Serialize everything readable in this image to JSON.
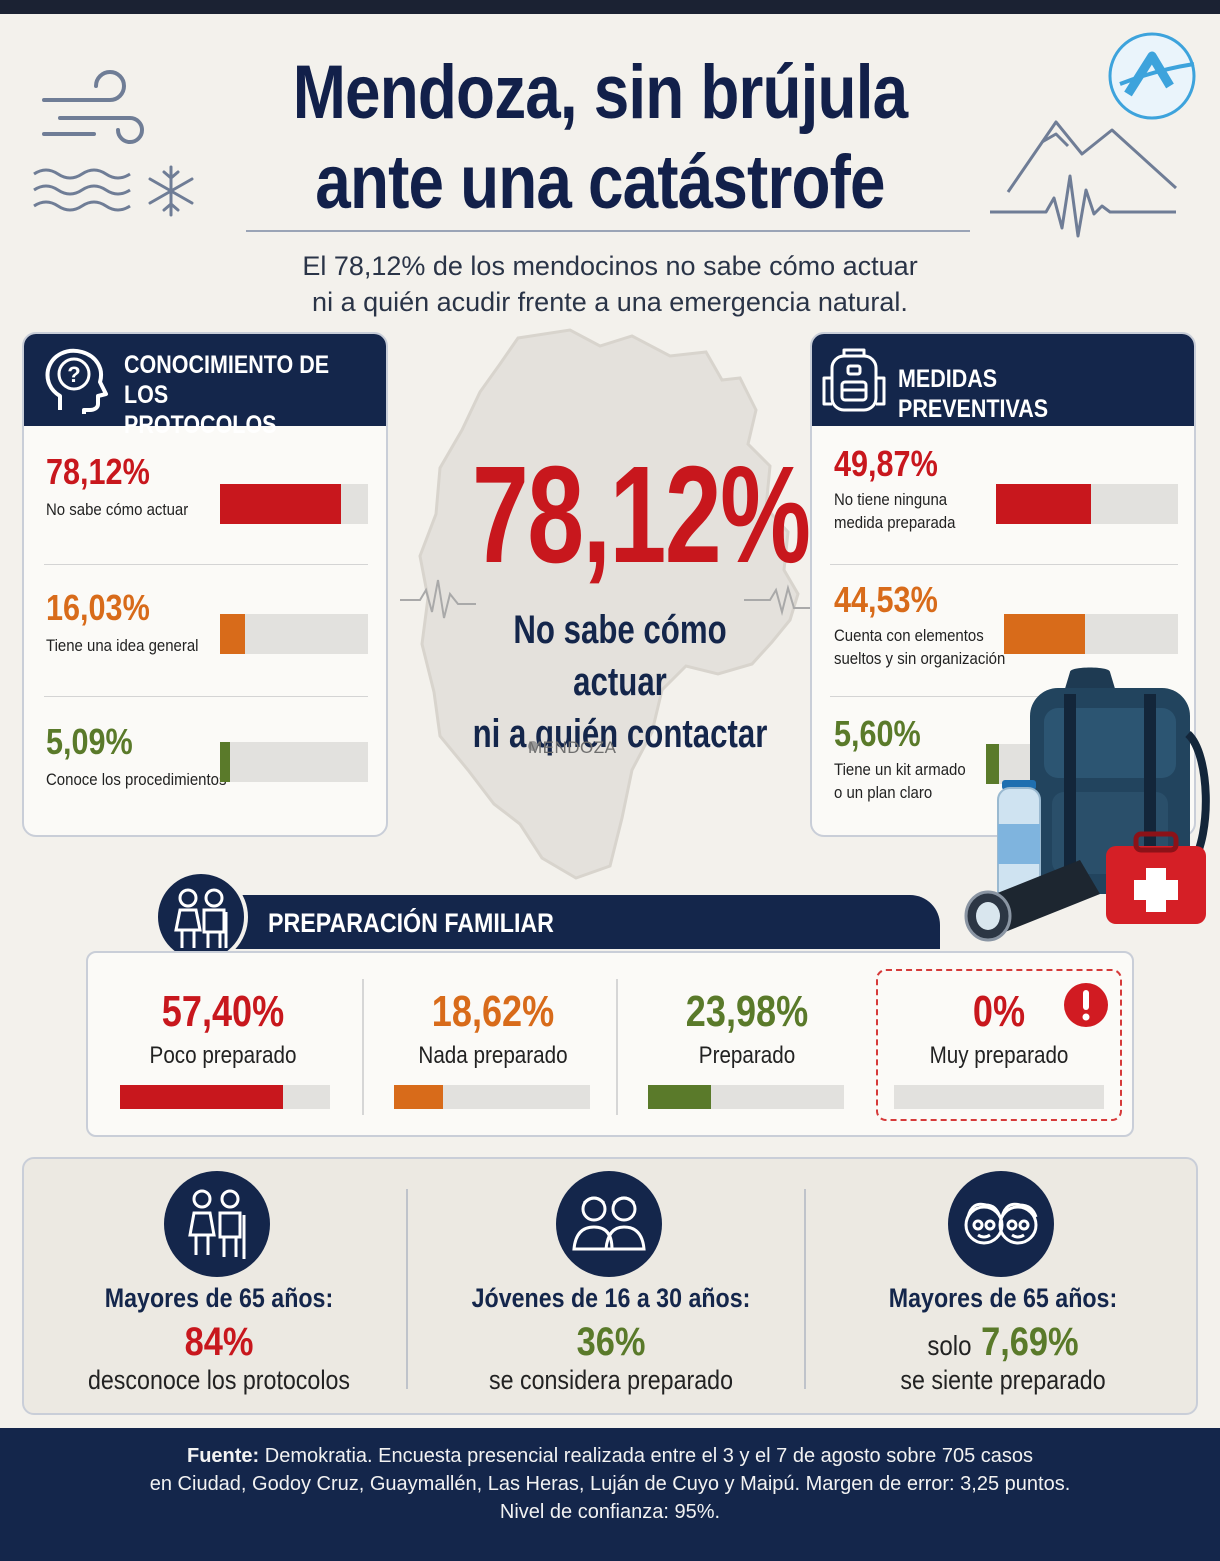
{
  "header": {
    "title_line1": "Mendoza, sin brújula",
    "title_line2": "ante una catástrofe",
    "subtitle_line1": "El 78,12% de los mendocinos no sabe cómo actuar",
    "subtitle_line2": "ni a quién acudir frente a una emergencia natural."
  },
  "protocols": {
    "title_line1": "CONOCIMIENTO DE LOS",
    "title_line2": "PROTOCOLOS",
    "icon": "head-question-icon",
    "items": [
      {
        "pct": "78,12%",
        "label": "No sabe cómo actuar",
        "value": 78.12,
        "color": "#c8171d"
      },
      {
        "pct": "16,03%",
        "label": "Tiene una idea general",
        "value": 16.03,
        "color": "#d86b1a"
      },
      {
        "pct": "5,09%",
        "label": "Conoce los procedimientos",
        "value": 5.09,
        "color": "#5a7a2a"
      }
    ]
  },
  "center": {
    "big_pct": "78,12%",
    "line1": "No sabe cómo actuar",
    "line2": "ni a quién contactar",
    "map_label": "MENDOZA"
  },
  "preventive": {
    "title": "MEDIDAS PREVENTIVAS",
    "icon": "backpack-icon",
    "items": [
      {
        "pct": "49,87%",
        "line1": "No tiene ninguna",
        "line2": "medida preparada",
        "value": 49.87,
        "color": "#c8171d"
      },
      {
        "pct": "44,53%",
        "line1": "Cuenta con elementos",
        "line2": "sueltos y sin organización",
        "value": 44.53,
        "color": "#d86b1a"
      },
      {
        "pct": "5,60%",
        "line1": "Tiene un kit armado",
        "line2": "o un plan claro",
        "value": 5.6,
        "color": "#5a7a2a"
      }
    ]
  },
  "family": {
    "title": "PREPARACIÓN FAMILIAR",
    "icon": "family-icon",
    "items": [
      {
        "pct": "57,40%",
        "label": "Poco preparado",
        "value": 57.4,
        "color": "#c8171d"
      },
      {
        "pct": "18,62%",
        "label": "Nada preparado",
        "value": 18.62,
        "color": "#d86b1a"
      },
      {
        "pct": "23,98%",
        "label": "Preparado",
        "value": 23.98,
        "color": "#5a7a2a"
      },
      {
        "pct": "0%",
        "label": "Muy preparado",
        "value": 0,
        "color": "#c8171d",
        "alert_icon": "exclamation-icon"
      }
    ]
  },
  "demographics": [
    {
      "icon": "elderly-couple-icon",
      "label": "Mayores de 65 años:",
      "prefix": "",
      "value": "84%",
      "value_color": "#c8171d",
      "text": "desconoce los protocolos"
    },
    {
      "icon": "young-people-icon",
      "label": "Jóvenes de 16 a 30 años:",
      "prefix": "",
      "value": "36%",
      "value_color": "#5a7a2a",
      "text": "se considera preparado"
    },
    {
      "icon": "elderly-faces-icon",
      "label": "Mayores de 65 años:",
      "prefix": "solo",
      "value": "7,69%",
      "value_color": "#5a7a2a",
      "text": "se siente preparado"
    }
  ],
  "footer": {
    "source_label": "Fuente:",
    "line1": "Demokratia. Encuesta presencial realizada entre el 3 y el 7 de agosto sobre 705 casos",
    "line2": "en Ciudad, Godoy Cruz, Guaymallén, Las Heras, Luján de Cuyo y Maipú. Margen de error: 3,25 puntos.",
    "line3": "Nivel de confianza: 95%."
  }
}
